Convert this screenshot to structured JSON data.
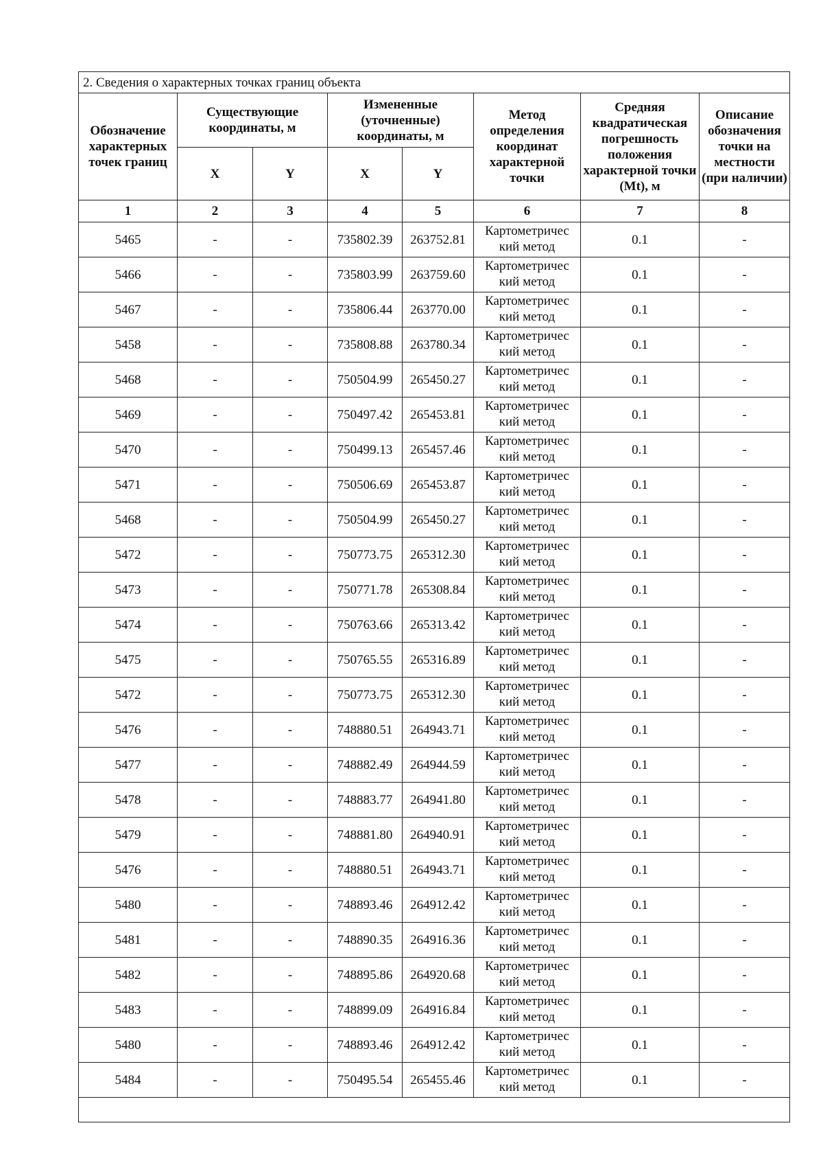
{
  "section_title": "2. Сведения о характерных точках границ объекта",
  "headers": {
    "col1": "Обозначение характерных точек границ",
    "existing": "Существующие координаты, м",
    "changed": "Измененные (уточненные) координаты, м",
    "method": "Метод определения координат характерной точки",
    "error": "Средняя квадратическая погрешность положения характерной точки (Mt), м",
    "description": "Описание обозначения точки на местности (при наличии)",
    "x": "X",
    "y": "Y"
  },
  "column_numbers": [
    "1",
    "2",
    "3",
    "4",
    "5",
    "6",
    "7",
    "8"
  ],
  "rows": [
    {
      "point": "5465",
      "ex": "-",
      "ey": "-",
      "x": "735802.39",
      "y": "263752.81",
      "method": "Картометричес кий метод",
      "mt": "0.1",
      "desc": "-"
    },
    {
      "point": "5466",
      "ex": "-",
      "ey": "-",
      "x": "735803.99",
      "y": "263759.60",
      "method": "Картометричес кий метод",
      "mt": "0.1",
      "desc": "-"
    },
    {
      "point": "5467",
      "ex": "-",
      "ey": "-",
      "x": "735806.44",
      "y": "263770.00",
      "method": "Картометричес кий метод",
      "mt": "0.1",
      "desc": "-"
    },
    {
      "point": "5458",
      "ex": "-",
      "ey": "-",
      "x": "735808.88",
      "y": "263780.34",
      "method": "Картометричес кий метод",
      "mt": "0.1",
      "desc": "-"
    },
    {
      "point": "5468",
      "ex": "-",
      "ey": "-",
      "x": "750504.99",
      "y": "265450.27",
      "method": "Картометричес кий метод",
      "mt": "0.1",
      "desc": "-"
    },
    {
      "point": "5469",
      "ex": "-",
      "ey": "-",
      "x": "750497.42",
      "y": "265453.81",
      "method": "Картометричес кий метод",
      "mt": "0.1",
      "desc": "-"
    },
    {
      "point": "5470",
      "ex": "-",
      "ey": "-",
      "x": "750499.13",
      "y": "265457.46",
      "method": "Картометричес кий метод",
      "mt": "0.1",
      "desc": "-"
    },
    {
      "point": "5471",
      "ex": "-",
      "ey": "-",
      "x": "750506.69",
      "y": "265453.87",
      "method": "Картометричес кий метод",
      "mt": "0.1",
      "desc": "-"
    },
    {
      "point": "5468",
      "ex": "-",
      "ey": "-",
      "x": "750504.99",
      "y": "265450.27",
      "method": "Картометричес кий метод",
      "mt": "0.1",
      "desc": "-"
    },
    {
      "point": "5472",
      "ex": "-",
      "ey": "-",
      "x": "750773.75",
      "y": "265312.30",
      "method": "Картометричес кий метод",
      "mt": "0.1",
      "desc": "-"
    },
    {
      "point": "5473",
      "ex": "-",
      "ey": "-",
      "x": "750771.78",
      "y": "265308.84",
      "method": "Картометричес кий метод",
      "mt": "0.1",
      "desc": "-"
    },
    {
      "point": "5474",
      "ex": "-",
      "ey": "-",
      "x": "750763.66",
      "y": "265313.42",
      "method": "Картометричес кий метод",
      "mt": "0.1",
      "desc": "-"
    },
    {
      "point": "5475",
      "ex": "-",
      "ey": "-",
      "x": "750765.55",
      "y": "265316.89",
      "method": "Картометричес кий метод",
      "mt": "0.1",
      "desc": "-"
    },
    {
      "point": "5472",
      "ex": "-",
      "ey": "-",
      "x": "750773.75",
      "y": "265312.30",
      "method": "Картометричес кий метод",
      "mt": "0.1",
      "desc": "-"
    },
    {
      "point": "5476",
      "ex": "-",
      "ey": "-",
      "x": "748880.51",
      "y": "264943.71",
      "method": "Картометричес кий метод",
      "mt": "0.1",
      "desc": "-"
    },
    {
      "point": "5477",
      "ex": "-",
      "ey": "-",
      "x": "748882.49",
      "y": "264944.59",
      "method": "Картометричес кий метод",
      "mt": "0.1",
      "desc": "-"
    },
    {
      "point": "5478",
      "ex": "-",
      "ey": "-",
      "x": "748883.77",
      "y": "264941.80",
      "method": "Картометричес кий метод",
      "mt": "0.1",
      "desc": "-"
    },
    {
      "point": "5479",
      "ex": "-",
      "ey": "-",
      "x": "748881.80",
      "y": "264940.91",
      "method": "Картометричес кий метод",
      "mt": "0.1",
      "desc": "-"
    },
    {
      "point": "5476",
      "ex": "-",
      "ey": "-",
      "x": "748880.51",
      "y": "264943.71",
      "method": "Картометричес кий метод",
      "mt": "0.1",
      "desc": "-"
    },
    {
      "point": "5480",
      "ex": "-",
      "ey": "-",
      "x": "748893.46",
      "y": "264912.42",
      "method": "Картометричес кий метод",
      "mt": "0.1",
      "desc": "-"
    },
    {
      "point": "5481",
      "ex": "-",
      "ey": "-",
      "x": "748890.35",
      "y": "264916.36",
      "method": "Картометричес кий метод",
      "mt": "0.1",
      "desc": "-"
    },
    {
      "point": "5482",
      "ex": "-",
      "ey": "-",
      "x": "748895.86",
      "y": "264920.68",
      "method": "Картометричес кий метод",
      "mt": "0.1",
      "desc": "-"
    },
    {
      "point": "5483",
      "ex": "-",
      "ey": "-",
      "x": "748899.09",
      "y": "264916.84",
      "method": "Картометричес кий метод",
      "mt": "0.1",
      "desc": "-"
    },
    {
      "point": "5480",
      "ex": "-",
      "ey": "-",
      "x": "748893.46",
      "y": "264912.42",
      "method": "Картометричес кий метод",
      "mt": "0.1",
      "desc": "-"
    },
    {
      "point": "5484",
      "ex": "-",
      "ey": "-",
      "x": "750495.54",
      "y": "265455.46",
      "method": "Картометричес кий метод",
      "mt": "0.1",
      "desc": "-"
    }
  ]
}
